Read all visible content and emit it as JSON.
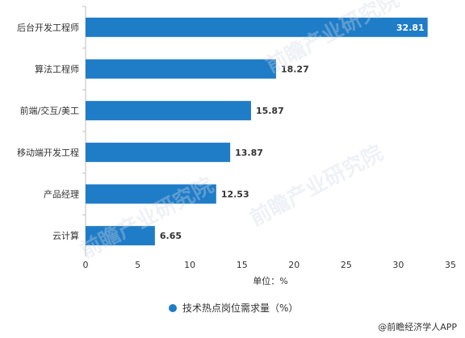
{
  "chart_data": {
    "type": "bar",
    "orientation": "horizontal",
    "categories": [
      "后台开发工程师",
      "算法工程师",
      "前端/交互/美工",
      "移动端开发工程",
      "产品经理",
      "云计算"
    ],
    "series": [
      {
        "name": "技术热点岗位需求量（%）",
        "values": [
          32.81,
          18.27,
          15.87,
          13.87,
          12.53,
          6.65
        ]
      }
    ],
    "data_labels": [
      "32.81",
      "18.27",
      "15.87",
      "13.87",
      "12.53",
      "6.65"
    ],
    "xlabel": "单位：%",
    "ylabel": "",
    "xlim": [
      0,
      35
    ],
    "xticks": [
      0,
      5,
      10,
      15,
      20,
      25,
      30,
      35
    ],
    "grid": false,
    "legend": "bottom-center",
    "bar_color": "#1F7CC7"
  },
  "watermark": "前瞻产业研究院",
  "credit": "@前瞻经济学人APP"
}
